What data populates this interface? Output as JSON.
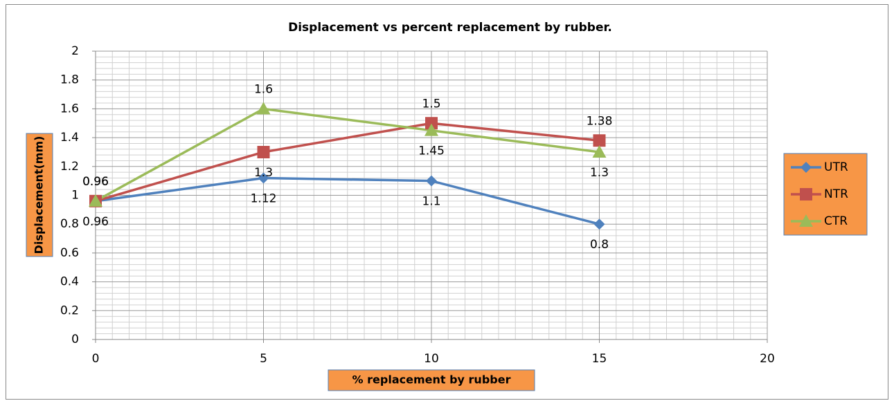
{
  "chart_data": {
    "type": "line",
    "title": "Displacement vs percent replacement by rubber.",
    "x_label": "%  replacement by rubber",
    "y_label": "Displacement(mm)",
    "x": [
      0,
      5,
      10,
      15
    ],
    "xlim": [
      0,
      20
    ],
    "xticks": [
      0,
      5,
      10,
      15,
      20
    ],
    "ylim": [
      0,
      2
    ],
    "yticks": [
      0,
      0.2,
      0.4,
      0.6,
      0.8,
      1,
      1.2,
      1.4,
      1.6,
      1.8,
      2
    ],
    "grid": true,
    "legend": "right",
    "series": [
      {
        "name": "UTR",
        "color": "#4f81bd",
        "marker": "diamond",
        "values": [
          0.96,
          1.12,
          1.1,
          0.8
        ]
      },
      {
        "name": "NTR",
        "color": "#c0504d",
        "marker": "square",
        "values": [
          0.96,
          1.3,
          1.5,
          1.38
        ]
      },
      {
        "name": "CTR",
        "color": "#9bbb59",
        "marker": "triangle",
        "values": [
          0.96,
          1.6,
          1.45,
          1.3
        ]
      }
    ]
  }
}
